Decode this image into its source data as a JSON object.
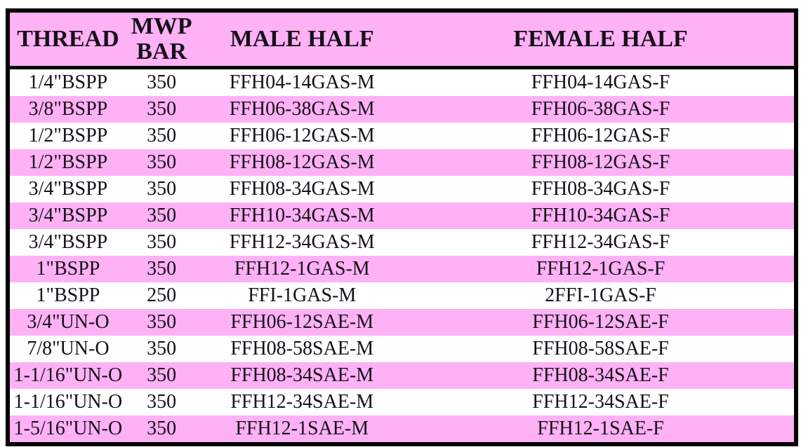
{
  "colors": {
    "row_pink": "#ffb1f6",
    "header_pink": "#ffb1f6",
    "border_black": "#000000",
    "text": "#151019"
  },
  "table": {
    "columns": [
      "THREAD",
      "MWP\nBAR",
      "MALE HALF",
      "FEMALE HALF"
    ],
    "column_keys": [
      "thread",
      "mwp-bar",
      "male-half",
      "female-half"
    ],
    "rows": [
      [
        "1/4\"BSPP",
        "350",
        "FFH04-14GAS-M",
        "FFH04-14GAS-F"
      ],
      [
        "3/8\"BSPP",
        "350",
        "FFH06-38GAS-M",
        "FFH06-38GAS-F"
      ],
      [
        "1/2\"BSPP",
        "350",
        "FFH06-12GAS-M",
        "FFH06-12GAS-F"
      ],
      [
        "1/2\"BSPP",
        "350",
        "FFH08-12GAS-M",
        "FFH08-12GAS-F"
      ],
      [
        "3/4\"BSPP",
        "350",
        "FFH08-34GAS-M",
        "FFH08-34GAS-F"
      ],
      [
        "3/4\"BSPP",
        "350",
        "FFH10-34GAS-M",
        "FFH10-34GAS-F"
      ],
      [
        "3/4\"BSPP",
        "350",
        "FFH12-34GAS-M",
        "FFH12-34GAS-F"
      ],
      [
        "1\"BSPP",
        "350",
        "FFH12-1GAS-M",
        "FFH12-1GAS-F"
      ],
      [
        "1\"BSPP",
        "250",
        "FFI-1GAS-M",
        "2FFI-1GAS-F"
      ],
      [
        "3/4\"UN-O",
        "350",
        "FFH06-12SAE-M",
        "FFH06-12SAE-F"
      ],
      [
        "7/8\"UN-O",
        "350",
        "FFH08-58SAE-M",
        "FFH08-58SAE-F"
      ],
      [
        "1-1/16\"UN-O",
        "350",
        "FFH08-34SAE-M",
        "FFH08-34SAE-F"
      ],
      [
        "1-1/16\"UN-O",
        "350",
        "FFH12-34SAE-M",
        "FFH12-34SAE-F"
      ],
      [
        "1-5/16\"UN-O",
        "350",
        "FFH12-1SAE-M",
        "FFH12-1SAE-F"
      ]
    ]
  }
}
